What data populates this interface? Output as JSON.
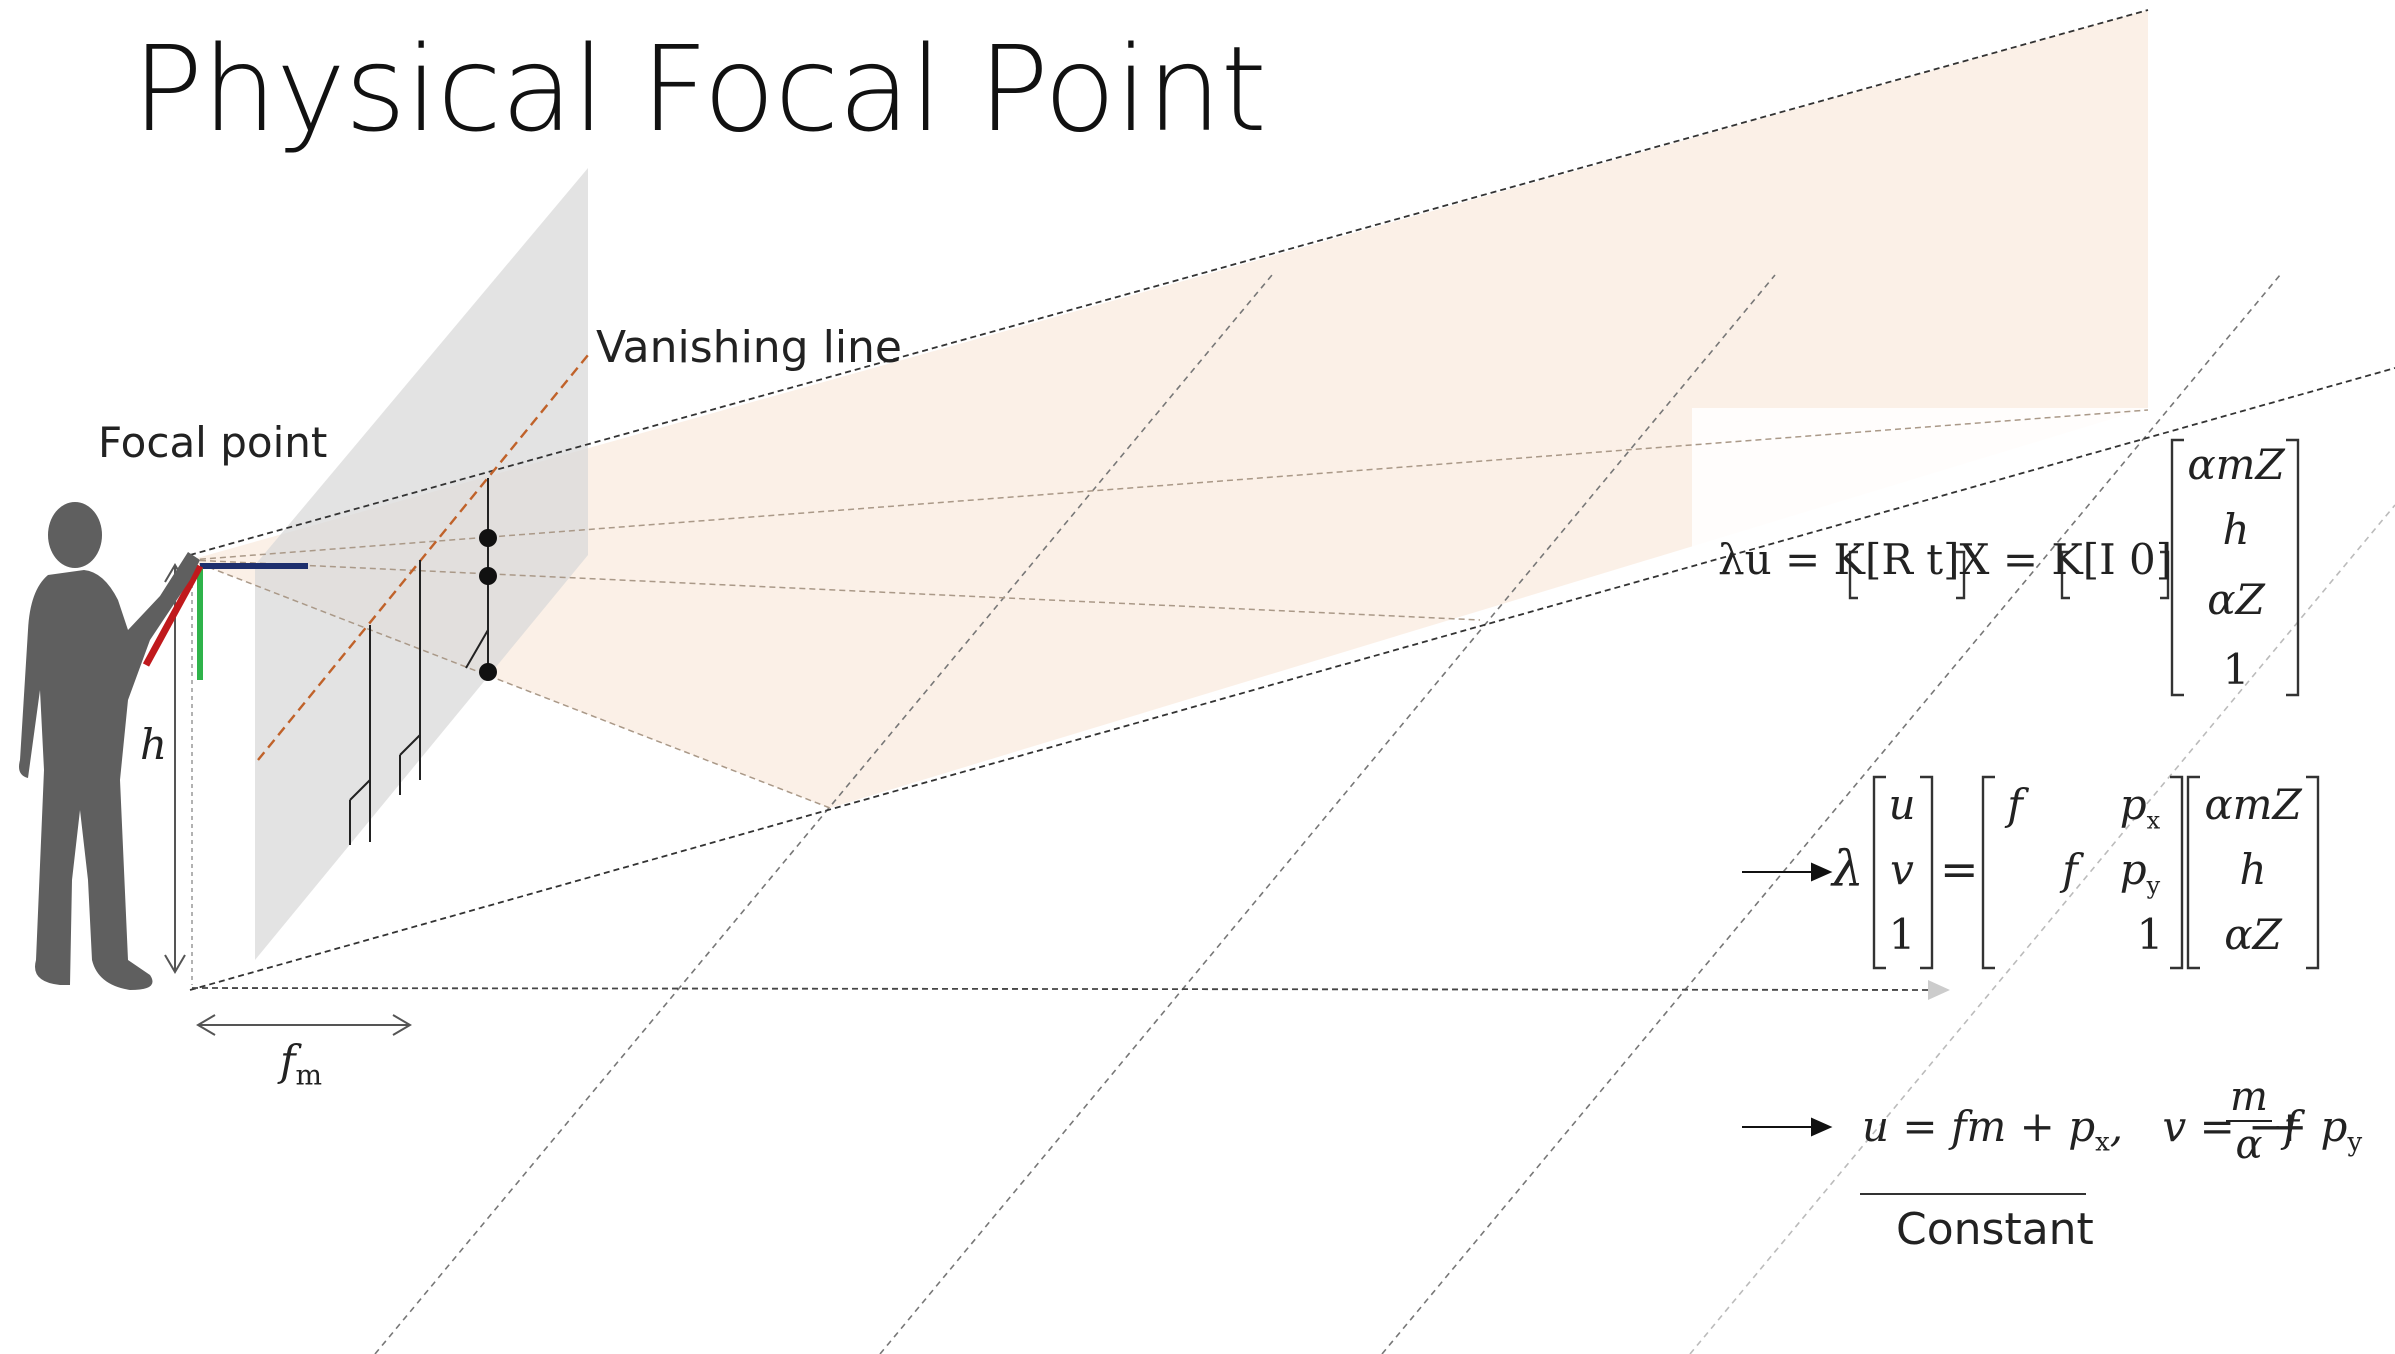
{
  "title": "Physical Focal Point",
  "labels": {
    "focal_point": "Focal point",
    "vanishing_line": "Vanishing line",
    "height": "h",
    "focal_length": "f",
    "focal_length_sub": "m"
  },
  "equations": {
    "eq1_prefix": "λu = K[R   t]X = K[I   0]",
    "eq1_vector": [
      "αmZ",
      "h",
      "αZ",
      "1"
    ],
    "eq2_lambda": "λ",
    "eq2_lhs": [
      "u",
      "v",
      "1"
    ],
    "eq2_equals": "=",
    "eq2_K": {
      "r1": [
        "f",
        "",
        "p"
      ],
      "r1_sub": "x",
      "r2": [
        "",
        "f",
        "p"
      ],
      "r2_sub": "y",
      "r3": [
        "",
        "",
        "1"
      ]
    },
    "eq2_rhs": [
      "αmZ",
      "h",
      "αZ"
    ],
    "eq3_u": "u = fm + p",
    "eq3_u_sub": "x",
    "eq3_sep": ",",
    "eq3_v": "v = −f",
    "eq3_frac_num": "m",
    "eq3_frac_den": "α",
    "eq3_v_tail": "+ p",
    "eq3_v_sub": "y",
    "constant": "Constant"
  },
  "colors": {
    "person": "#5f5f5f",
    "image_plane": "#e2e2e2",
    "frustum": "#fbeee4",
    "vanishing_line": "#c0622a",
    "axis_red": "#c0191c",
    "axis_green": "#2fb34a",
    "axis_blue": "#1d2f6e"
  },
  "icons": {
    "person": "person-silhouette-icon",
    "arrows": "arrow-right-icon"
  }
}
